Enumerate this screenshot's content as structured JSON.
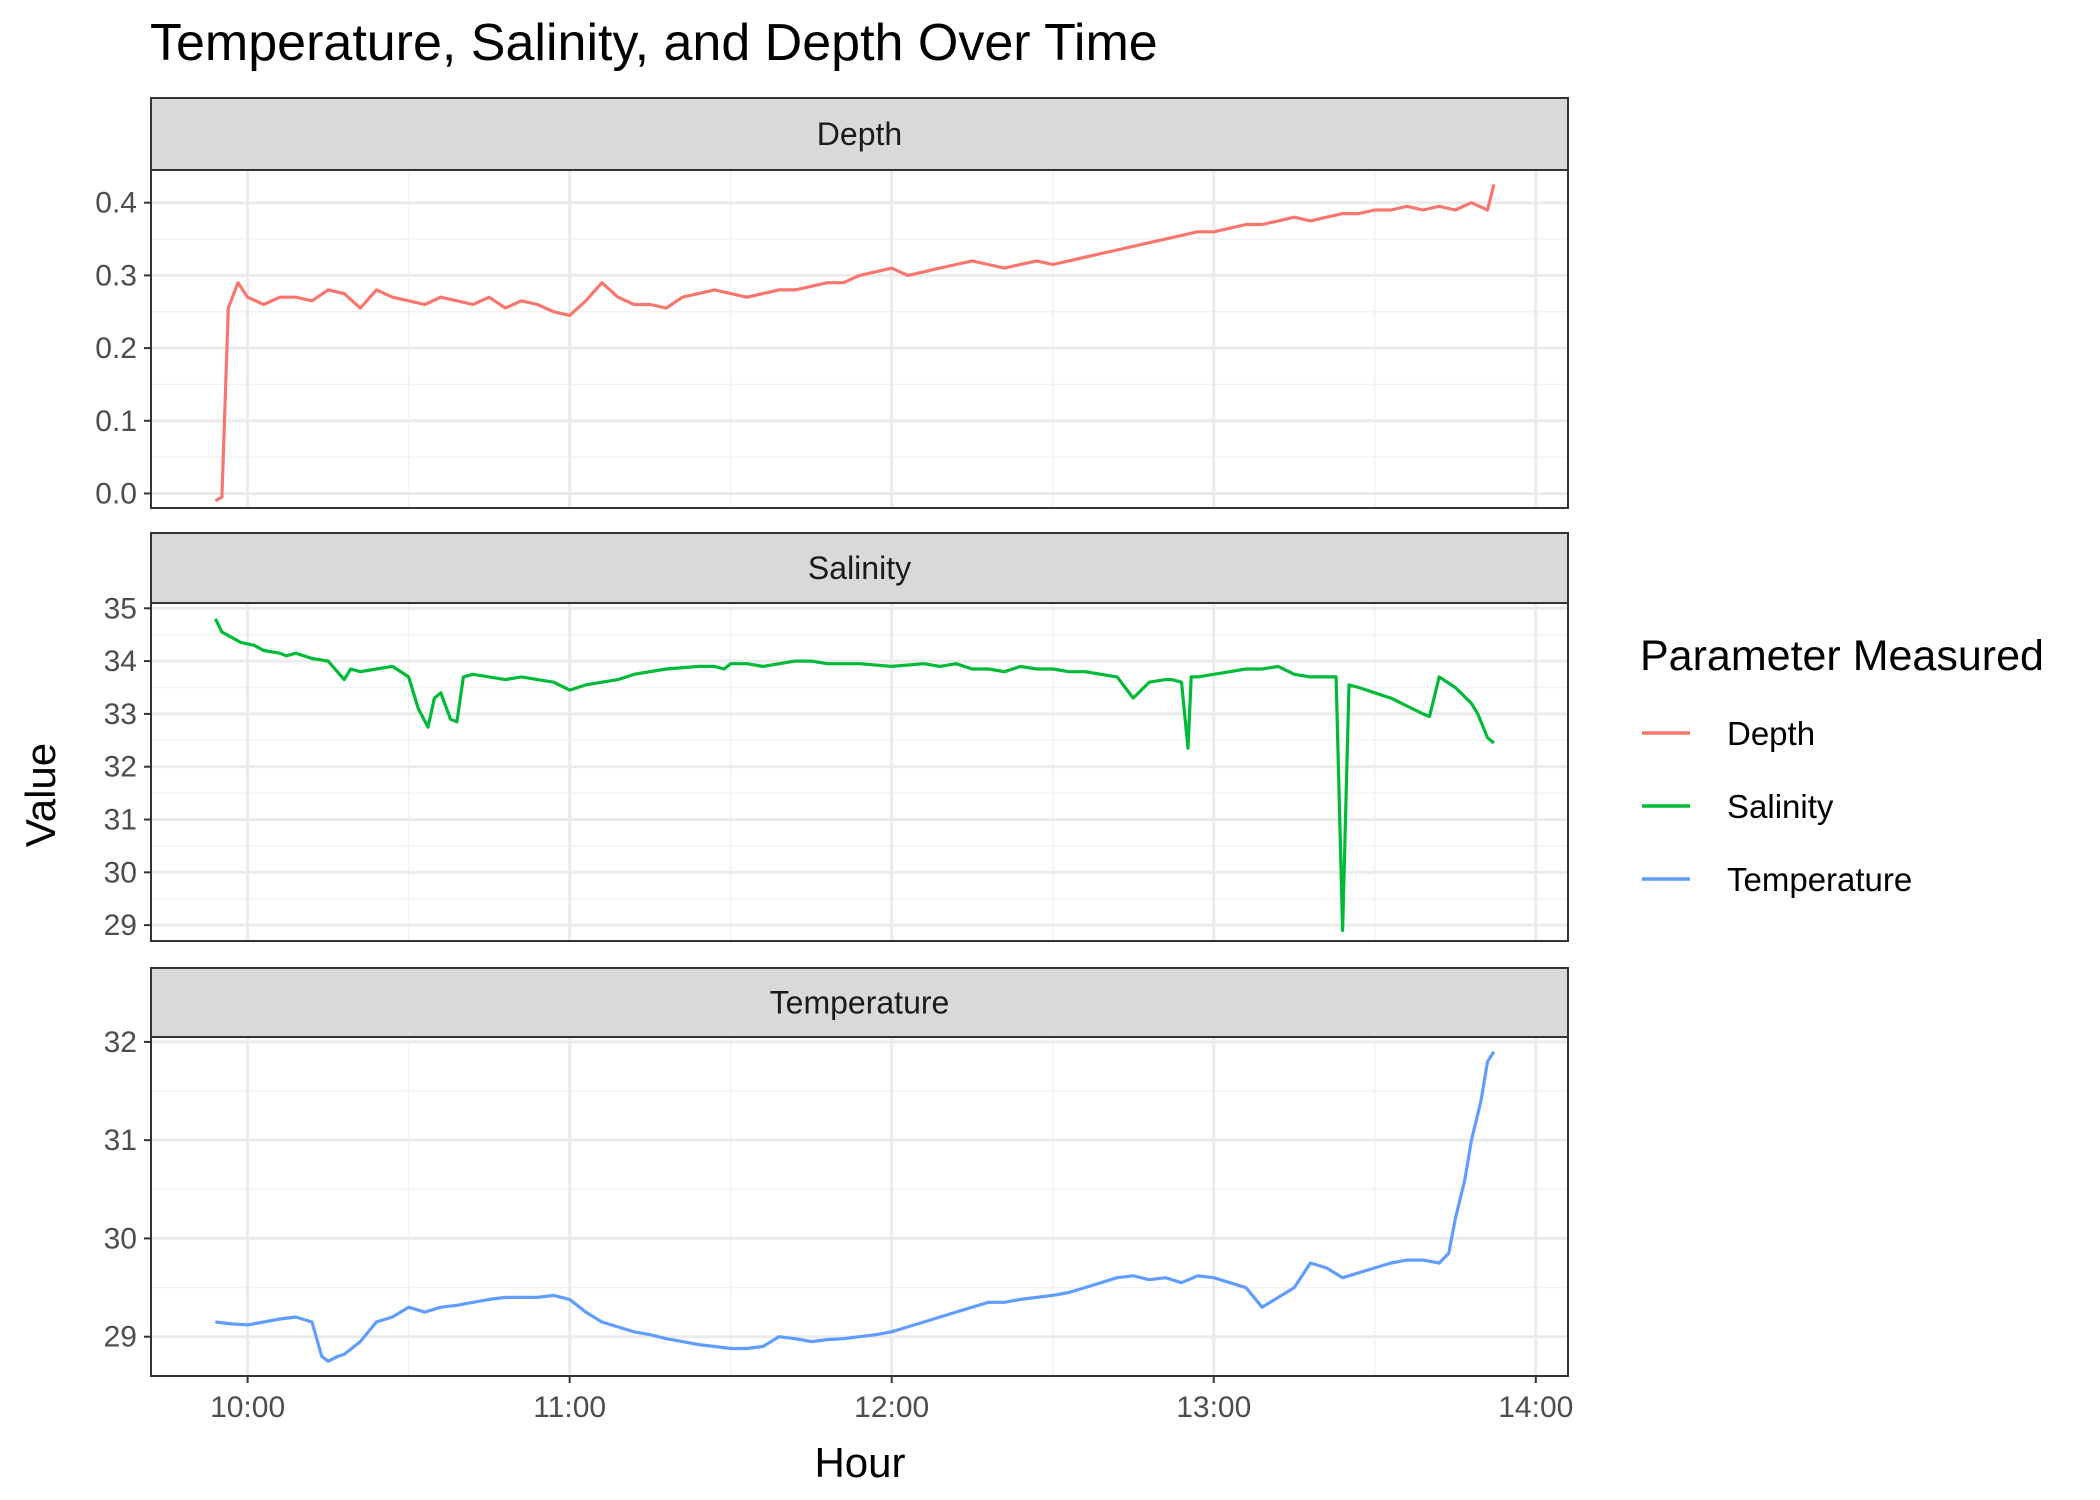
{
  "chart_data": {
    "type": "line",
    "title": "Temperature, Salinity, and Depth Over Time",
    "xlabel": "Hour",
    "ylabel": "Value",
    "x_ticks": [
      "10:00",
      "11:00",
      "12:00",
      "13:00",
      "14:00"
    ],
    "x_tick_hours": [
      10,
      11,
      12,
      13,
      14
    ],
    "xlim_hours": [
      9.7,
      14.1
    ],
    "grid": true,
    "legend": {
      "title": "Parameter Measured",
      "placement": "right",
      "items": [
        {
          "label": "Depth",
          "color": "#F8766D"
        },
        {
          "label": "Salinity",
          "color": "#00BA38"
        },
        {
          "label": "Temperature",
          "color": "#619CFF"
        }
      ]
    },
    "panels": [
      {
        "strip": "Depth",
        "color": "#F8766D",
        "ylim": [
          -0.02,
          0.445
        ],
        "y_ticks": [
          0.0,
          0.1,
          0.2,
          0.3,
          0.4
        ],
        "y_tick_labels": [
          "0.0",
          "0.1",
          "0.2",
          "0.3",
          "0.4"
        ],
        "series": {
          "name": "Depth",
          "x_hours": [
            9.9,
            9.92,
            9.94,
            9.97,
            10.0,
            10.05,
            10.1,
            10.15,
            10.2,
            10.25,
            10.3,
            10.35,
            10.4,
            10.45,
            10.5,
            10.55,
            10.6,
            10.65,
            10.7,
            10.75,
            10.8,
            10.85,
            10.9,
            10.95,
            11.0,
            11.05,
            11.1,
            11.15,
            11.2,
            11.25,
            11.3,
            11.35,
            11.4,
            11.45,
            11.5,
            11.55,
            11.6,
            11.65,
            11.7,
            11.75,
            11.8,
            11.85,
            11.9,
            11.95,
            12.0,
            12.05,
            12.1,
            12.15,
            12.2,
            12.25,
            12.3,
            12.35,
            12.4,
            12.45,
            12.5,
            12.55,
            12.6,
            12.65,
            12.7,
            12.75,
            12.8,
            12.85,
            12.9,
            12.95,
            13.0,
            13.05,
            13.1,
            13.15,
            13.2,
            13.25,
            13.3,
            13.35,
            13.4,
            13.45,
            13.5,
            13.55,
            13.6,
            13.65,
            13.7,
            13.75,
            13.8,
            13.85,
            13.87
          ],
          "values": [
            -0.01,
            -0.005,
            0.255,
            0.29,
            0.27,
            0.26,
            0.27,
            0.27,
            0.265,
            0.28,
            0.275,
            0.255,
            0.28,
            0.27,
            0.265,
            0.26,
            0.27,
            0.265,
            0.26,
            0.27,
            0.255,
            0.265,
            0.26,
            0.25,
            0.245,
            0.265,
            0.29,
            0.27,
            0.26,
            0.26,
            0.255,
            0.27,
            0.275,
            0.28,
            0.275,
            0.27,
            0.275,
            0.28,
            0.28,
            0.285,
            0.29,
            0.29,
            0.3,
            0.305,
            0.31,
            0.3,
            0.305,
            0.31,
            0.315,
            0.32,
            0.315,
            0.31,
            0.315,
            0.32,
            0.315,
            0.32,
            0.325,
            0.33,
            0.335,
            0.34,
            0.345,
            0.35,
            0.355,
            0.36,
            0.36,
            0.365,
            0.37,
            0.37,
            0.375,
            0.38,
            0.375,
            0.38,
            0.385,
            0.385,
            0.39,
            0.39,
            0.395,
            0.39,
            0.395,
            0.39,
            0.4,
            0.39,
            0.425
          ]
        }
      },
      {
        "strip": "Salinity",
        "color": "#00BA38",
        "ylim": [
          28.7,
          35.1
        ],
        "y_ticks": [
          29,
          30,
          31,
          32,
          33,
          34,
          35
        ],
        "y_tick_labels": [
          "29",
          "30",
          "31",
          "32",
          "33",
          "34",
          "35"
        ],
        "series": {
          "name": "Salinity",
          "x_hours": [
            9.9,
            9.92,
            9.95,
            9.98,
            10.02,
            10.05,
            10.1,
            10.12,
            10.15,
            10.2,
            10.25,
            10.3,
            10.32,
            10.35,
            10.4,
            10.45,
            10.5,
            10.53,
            10.56,
            10.58,
            10.6,
            10.63,
            10.65,
            10.67,
            10.7,
            10.75,
            10.8,
            10.85,
            10.9,
            10.95,
            11.0,
            11.05,
            11.1,
            11.15,
            11.2,
            11.3,
            11.4,
            11.45,
            11.48,
            11.5,
            11.55,
            11.6,
            11.7,
            11.75,
            11.8,
            11.9,
            12.0,
            12.1,
            12.15,
            12.2,
            12.25,
            12.3,
            12.35,
            12.4,
            12.45,
            12.5,
            12.55,
            12.6,
            12.65,
            12.7,
            12.75,
            12.8,
            12.85,
            12.87,
            12.9,
            12.92,
            12.93,
            12.95,
            13.0,
            13.05,
            13.1,
            13.15,
            13.2,
            13.25,
            13.3,
            13.35,
            13.38,
            13.4,
            13.42,
            13.45,
            13.5,
            13.55,
            13.6,
            13.65,
            13.67,
            13.7,
            13.75,
            13.8,
            13.82,
            13.85,
            13.87
          ],
          "values": [
            34.8,
            34.55,
            34.45,
            34.35,
            34.3,
            34.2,
            34.15,
            34.1,
            34.15,
            34.05,
            34.0,
            33.65,
            33.85,
            33.8,
            33.85,
            33.9,
            33.7,
            33.1,
            32.75,
            33.3,
            33.4,
            32.9,
            32.85,
            33.7,
            33.75,
            33.7,
            33.65,
            33.7,
            33.65,
            33.6,
            33.45,
            33.55,
            33.6,
            33.65,
            33.75,
            33.85,
            33.9,
            33.9,
            33.85,
            33.95,
            33.95,
            33.9,
            34.0,
            34.0,
            33.95,
            33.95,
            33.9,
            33.95,
            33.9,
            33.95,
            33.85,
            33.85,
            33.8,
            33.9,
            33.85,
            33.85,
            33.8,
            33.8,
            33.75,
            33.7,
            33.3,
            33.6,
            33.65,
            33.65,
            33.6,
            32.35,
            33.7,
            33.7,
            33.75,
            33.8,
            33.85,
            33.85,
            33.9,
            33.75,
            33.7,
            33.7,
            33.7,
            28.9,
            33.55,
            33.5,
            33.4,
            33.3,
            33.15,
            33.0,
            32.95,
            33.7,
            33.5,
            33.2,
            33.0,
            32.55,
            32.45
          ]
        }
      },
      {
        "strip": "Temperature",
        "color": "#619CFF",
        "ylim": [
          28.6,
          32.05
        ],
        "y_ticks": [
          29,
          30,
          31,
          32
        ],
        "y_tick_labels": [
          "29",
          "30",
          "31",
          "32"
        ],
        "series": {
          "name": "Temperature",
          "x_hours": [
            9.9,
            9.95,
            10.0,
            10.05,
            10.1,
            10.15,
            10.2,
            10.23,
            10.25,
            10.28,
            10.3,
            10.35,
            10.4,
            10.45,
            10.5,
            10.55,
            10.6,
            10.65,
            10.7,
            10.75,
            10.8,
            10.85,
            10.9,
            10.95,
            11.0,
            11.05,
            11.1,
            11.15,
            11.2,
            11.25,
            11.3,
            11.35,
            11.4,
            11.45,
            11.5,
            11.55,
            11.6,
            11.65,
            11.7,
            11.75,
            11.8,
            11.85,
            11.9,
            11.95,
            12.0,
            12.05,
            12.1,
            12.15,
            12.2,
            12.25,
            12.3,
            12.35,
            12.4,
            12.45,
            12.5,
            12.55,
            12.6,
            12.65,
            12.7,
            12.75,
            12.8,
            12.85,
            12.9,
            12.95,
            13.0,
            13.05,
            13.1,
            13.15,
            13.2,
            13.25,
            13.3,
            13.35,
            13.4,
            13.45,
            13.5,
            13.55,
            13.6,
            13.65,
            13.7,
            13.73,
            13.75,
            13.78,
            13.8,
            13.83,
            13.85,
            13.87
          ],
          "values": [
            29.15,
            29.13,
            29.12,
            29.15,
            29.18,
            29.2,
            29.15,
            28.8,
            28.75,
            28.8,
            28.82,
            28.95,
            29.15,
            29.2,
            29.3,
            29.25,
            29.3,
            29.32,
            29.35,
            29.38,
            29.4,
            29.4,
            29.4,
            29.42,
            29.38,
            29.25,
            29.15,
            29.1,
            29.05,
            29.02,
            28.98,
            28.95,
            28.92,
            28.9,
            28.88,
            28.88,
            28.9,
            29.0,
            28.98,
            28.95,
            28.97,
            28.98,
            29.0,
            29.02,
            29.05,
            29.1,
            29.15,
            29.2,
            29.25,
            29.3,
            29.35,
            29.35,
            29.38,
            29.4,
            29.42,
            29.45,
            29.5,
            29.55,
            29.6,
            29.62,
            29.58,
            29.6,
            29.55,
            29.62,
            29.6,
            29.55,
            29.5,
            29.3,
            29.4,
            29.5,
            29.75,
            29.7,
            29.6,
            29.65,
            29.7,
            29.75,
            29.78,
            29.78,
            29.75,
            29.85,
            30.2,
            30.6,
            31.0,
            31.4,
            31.8,
            31.9
          ]
        }
      }
    ]
  }
}
